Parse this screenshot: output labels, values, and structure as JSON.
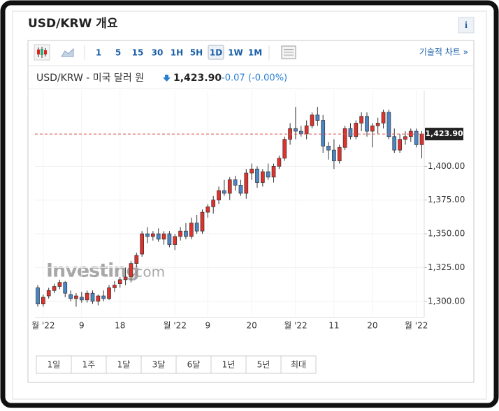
{
  "header": {
    "title": "USD/KRW 개요",
    "info": "i"
  },
  "toolbar": {
    "intervals": [
      "1",
      "5",
      "15",
      "30",
      "1H",
      "5H",
      "1D",
      "1W",
      "1M"
    ],
    "selected_interval": "1D",
    "technical_link": "기술적 차트 »"
  },
  "quote": {
    "name": "USD/KRW - 미국 달러 원",
    "price": "1,423.90",
    "change": "-0.07",
    "change_percent": "(-0.00%)"
  },
  "watermark": {
    "brand": "Investing",
    "suffix": ".com"
  },
  "ranges": [
    "1일",
    "1주",
    "1달",
    "3달",
    "6달",
    "1년",
    "5년",
    "최대"
  ],
  "chart_data": {
    "type": "candlestick",
    "up_color": "#e0312c",
    "down_color": "#4a86c5",
    "ylim": [
      1288,
      1456
    ],
    "yticks": [
      {
        "value": 1300,
        "label": "1,300.00"
      },
      {
        "value": 1325,
        "label": "1,325.00"
      },
      {
        "value": 1350,
        "label": "1,350.00"
      },
      {
        "value": 1375,
        "label": "1,375.00"
      },
      {
        "value": 1400,
        "label": "1,400.00"
      }
    ],
    "grid": true,
    "current_value": 1423.9,
    "current_label": "1,423.90",
    "current_line_color": "#d9534f",
    "categories": [
      null,
      "월 '22",
      null,
      null,
      null,
      null,
      null,
      null,
      "9",
      null,
      null,
      null,
      null,
      null,
      null,
      "18",
      null,
      null,
      null,
      null,
      null,
      null,
      null,
      null,
      null,
      "월 '22",
      null,
      null,
      null,
      null,
      null,
      "9",
      null,
      null,
      null,
      null,
      null,
      null,
      null,
      "20",
      null,
      null,
      null,
      null,
      null,
      null,
      null,
      "월 '22",
      null,
      null,
      null,
      null,
      null,
      null,
      "11",
      null,
      null,
      null,
      null,
      null,
      null,
      "20",
      null,
      null,
      null,
      null,
      null,
      null,
      null,
      "월 '22",
      null
    ],
    "open": [
      1310,
      1298,
      1304,
      1308,
      1311,
      1314,
      1305,
      1302,
      1303,
      1301,
      1306,
      1300,
      1304,
      1302,
      1310,
      1313,
      1316,
      1318,
      1328,
      1335,
      1350,
      1348,
      1350,
      1346,
      1350,
      1342,
      1348,
      1352,
      1348,
      1358,
      1352,
      1366,
      1370,
      1375,
      1382,
      1380,
      1390,
      1386,
      1380,
      1395,
      1398,
      1388,
      1396,
      1392,
      1400,
      1406,
      1420,
      1428,
      1426,
      1424,
      1430,
      1438,
      1434,
      1415,
      1412,
      1404,
      1414,
      1428,
      1422,
      1432,
      1437,
      1426,
      1430,
      1432,
      1440,
      1422,
      1412,
      1420,
      1422,
      1426,
      1416
    ],
    "high": [
      1312,
      1305,
      1310,
      1313,
      1316,
      1315,
      1308,
      1306,
      1307,
      1308,
      1308,
      1305,
      1308,
      1312,
      1315,
      1318,
      1325,
      1330,
      1336,
      1352,
      1355,
      1352,
      1354,
      1352,
      1352,
      1350,
      1355,
      1358,
      1362,
      1364,
      1368,
      1372,
      1378,
      1385,
      1390,
      1392,
      1393,
      1390,
      1398,
      1402,
      1400,
      1398,
      1402,
      1402,
      1408,
      1422,
      1432,
      1444,
      1430,
      1434,
      1440,
      1444,
      1438,
      1418,
      1420,
      1416,
      1430,
      1432,
      1434,
      1440,
      1440,
      1432,
      1436,
      1442,
      1442,
      1428,
      1424,
      1426,
      1428,
      1428,
      1426
    ],
    "low": [
      1296,
      1296,
      1302,
      1306,
      1309,
      1303,
      1300,
      1296,
      1299,
      1299,
      1298,
      1297,
      1300,
      1301,
      1307,
      1310,
      1312,
      1314,
      1325,
      1333,
      1343,
      1345,
      1344,
      1342,
      1340,
      1338,
      1345,
      1346,
      1346,
      1350,
      1350,
      1362,
      1365,
      1372,
      1378,
      1375,
      1382,
      1378,
      1376,
      1390,
      1384,
      1385,
      1390,
      1388,
      1398,
      1404,
      1416,
      1420,
      1422,
      1420,
      1428,
      1430,
      1410,
      1405,
      1398,
      1402,
      1412,
      1420,
      1420,
      1426,
      1422,
      1414,
      1424,
      1428,
      1420,
      1410,
      1410,
      1416,
      1418,
      1414,
      1406
    ],
    "close": [
      1298,
      1303,
      1308,
      1311,
      1314,
      1306,
      1302,
      1304,
      1301,
      1306,
      1300,
      1304,
      1302,
      1310,
      1312,
      1316,
      1318,
      1328,
      1334,
      1350,
      1348,
      1350,
      1346,
      1350,
      1342,
      1348,
      1352,
      1348,
      1358,
      1352,
      1366,
      1370,
      1375,
      1382,
      1380,
      1390,
      1386,
      1380,
      1395,
      1398,
      1388,
      1396,
      1392,
      1400,
      1406,
      1420,
      1428,
      1426,
      1424,
      1430,
      1438,
      1434,
      1415,
      1412,
      1404,
      1414,
      1428,
      1422,
      1432,
      1437,
      1426,
      1430,
      1432,
      1440,
      1422,
      1412,
      1420,
      1422,
      1426,
      1416,
      1423.9
    ]
  }
}
